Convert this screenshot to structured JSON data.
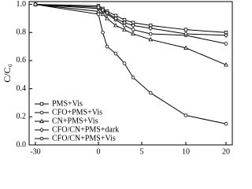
{
  "chart_data": {
    "type": "line",
    "y_label": "C/C₀",
    "x": [
      -30,
      0,
      0.5,
      1,
      2,
      3,
      4,
      6,
      10,
      20
    ],
    "xlim": [
      -33,
      21
    ],
    "xticks": [
      -30,
      0,
      5,
      10,
      20
    ],
    "ylim": [
      0,
      1.02
    ],
    "yticks": [
      {
        "value": 0,
        "label": "0.0"
      },
      0.2,
      0.4,
      0.6,
      0.8,
      {
        "value": 1,
        "label": "1.0"
      }
    ],
    "legend": "lower left",
    "grid": false,
    "series": [
      {
        "name": "PMS+Vis",
        "color": "#000000",
        "marker": "square",
        "values": [
          1.0,
          0.99,
          0.97,
          0.95,
          0.92,
          0.89,
          0.87,
          0.85,
          0.82,
          0.8
        ]
      },
      {
        "name": "CFO+PMS+Vis",
        "color": "#000000",
        "marker": "circle",
        "values": [
          1.0,
          0.97,
          0.95,
          0.93,
          0.89,
          0.85,
          0.82,
          0.79,
          0.78,
          0.72
        ]
      },
      {
        "name": "CN+PMS+Vis",
        "color": "#000000",
        "marker": "triangle",
        "values": [
          1.0,
          0.95,
          0.93,
          0.9,
          0.85,
          0.82,
          0.79,
          0.75,
          0.69,
          0.57
        ]
      },
      {
        "name": "CFO/CN+PMS+dark",
        "color": "#000000",
        "marker": "diamond",
        "values": [
          1.0,
          0.98,
          0.96,
          0.94,
          0.9,
          0.87,
          0.85,
          0.83,
          0.79,
          0.78
        ]
      },
      {
        "name": "CFO/CN+PMS+Vis",
        "color": "#000000",
        "marker": "circle",
        "values": [
          1.0,
          0.93,
          0.8,
          0.7,
          0.65,
          0.58,
          0.48,
          0.37,
          0.21,
          0.15
        ]
      }
    ]
  }
}
